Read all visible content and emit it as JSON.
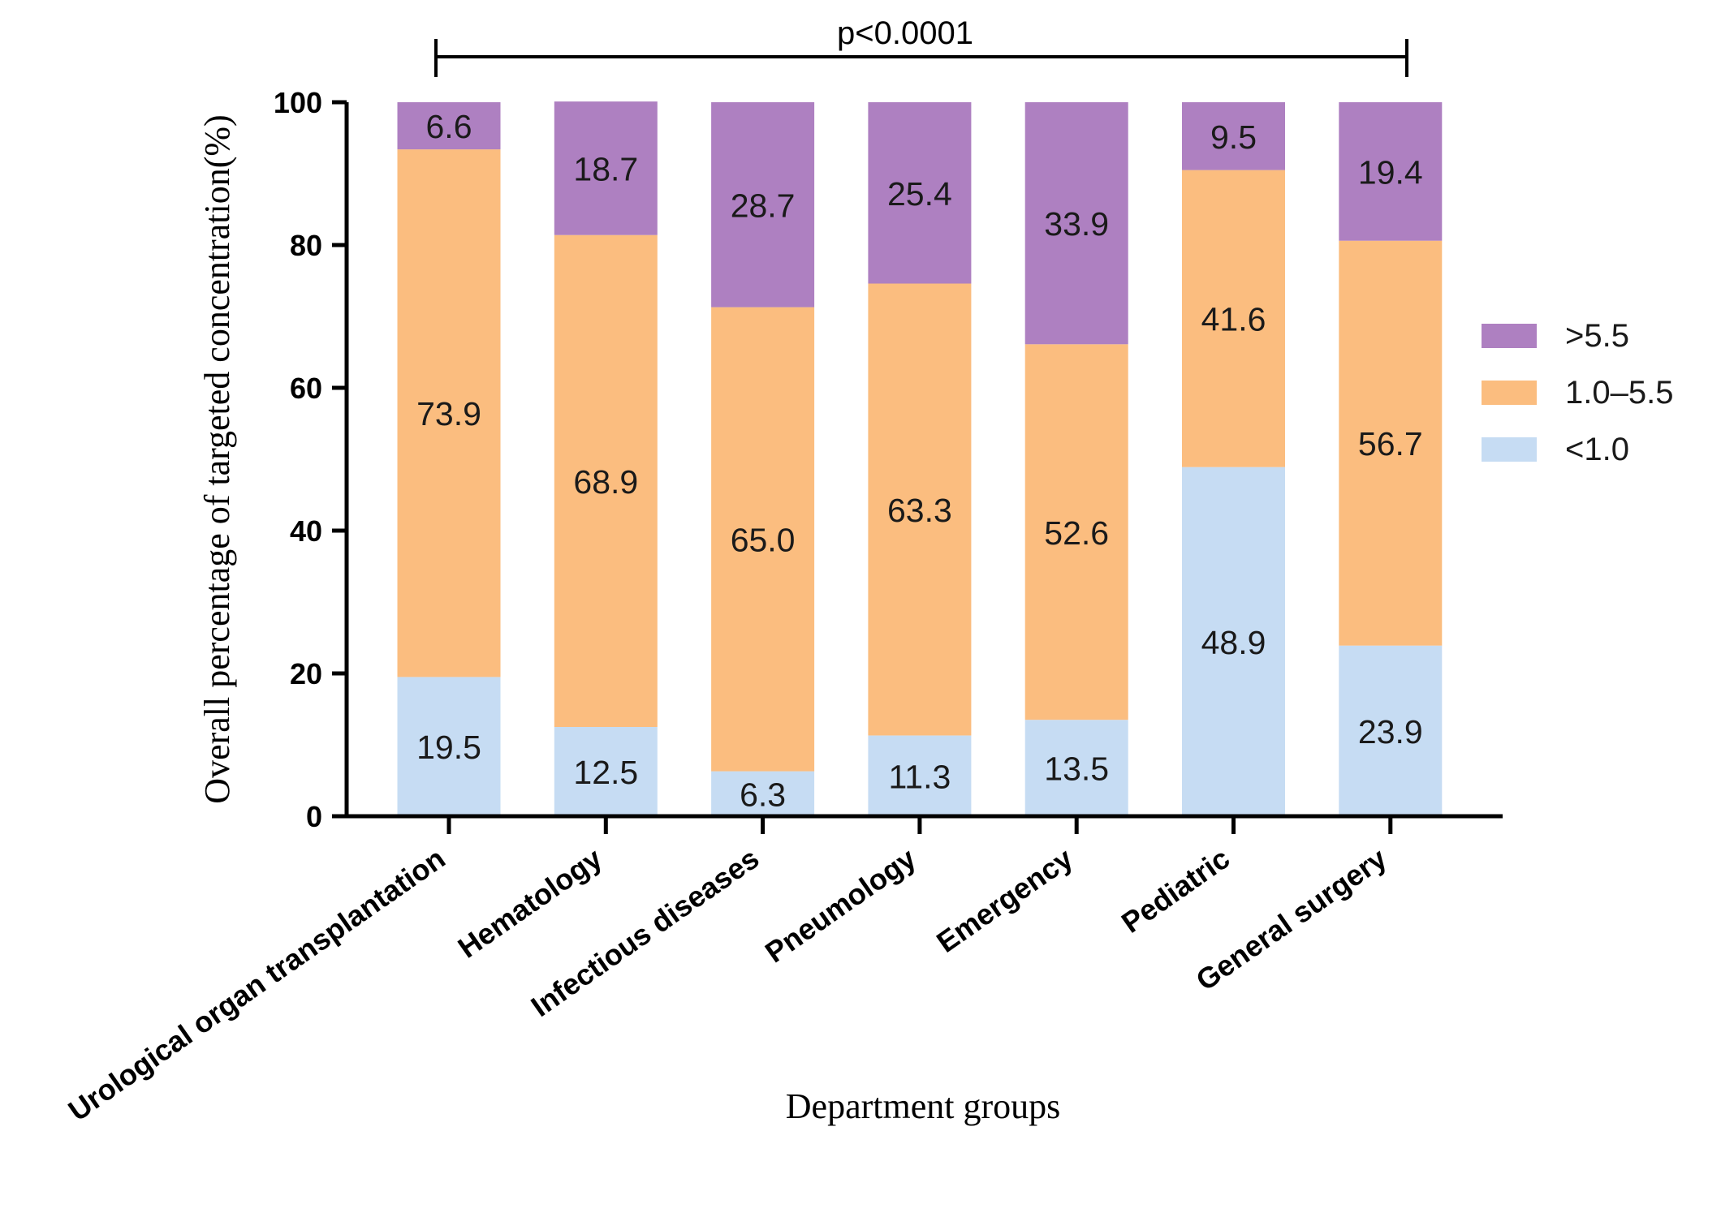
{
  "chart_data": {
    "type": "bar",
    "stacked": true,
    "percent": true,
    "title": "",
    "xlabel": "Department groups",
    "ylabel": "Overall percentage of targeted concentration(%)",
    "ylim": [
      0,
      100
    ],
    "yticks": [
      0,
      20,
      40,
      60,
      80,
      100
    ],
    "categories": [
      "Urological organ transplantation",
      "Hematology",
      "Infectious diseases",
      "Pneumology",
      "Emergency",
      "Pediatric",
      "General surgery"
    ],
    "series": [
      {
        "name": "<1.0",
        "color": "#c6dcf3",
        "values": [
          19.5,
          12.5,
          6.3,
          11.3,
          13.5,
          48.9,
          23.9
        ]
      },
      {
        "name": "1.0–5.5",
        "color": "#fbbd7f",
        "values": [
          73.9,
          68.9,
          65.0,
          63.3,
          52.6,
          41.6,
          56.7
        ]
      },
      {
        "name": ">5.5",
        "color": "#ae80c1",
        "values": [
          6.6,
          18.7,
          28.7,
          25.4,
          33.9,
          9.5,
          19.4
        ]
      }
    ],
    "value_labels": [
      [
        "19.5",
        "12.5",
        "6.3",
        "11.3",
        "13.5",
        "48.9",
        "23.9"
      ],
      [
        "73.9",
        "68.9",
        "65.0",
        "63.3",
        "52.6",
        "41.6",
        "56.7"
      ],
      [
        "6.6",
        "18.7",
        "28.7",
        "25.4",
        "33.9",
        "9.5",
        "19.4"
      ]
    ],
    "legend": {
      "position": "right",
      "order": [
        ">5.5",
        "1.0–5.5",
        "<1.0"
      ]
    },
    "significance": {
      "text": "p<0.0001",
      "from_category": "Urological organ transplantation",
      "to_category": "General surgery"
    }
  }
}
